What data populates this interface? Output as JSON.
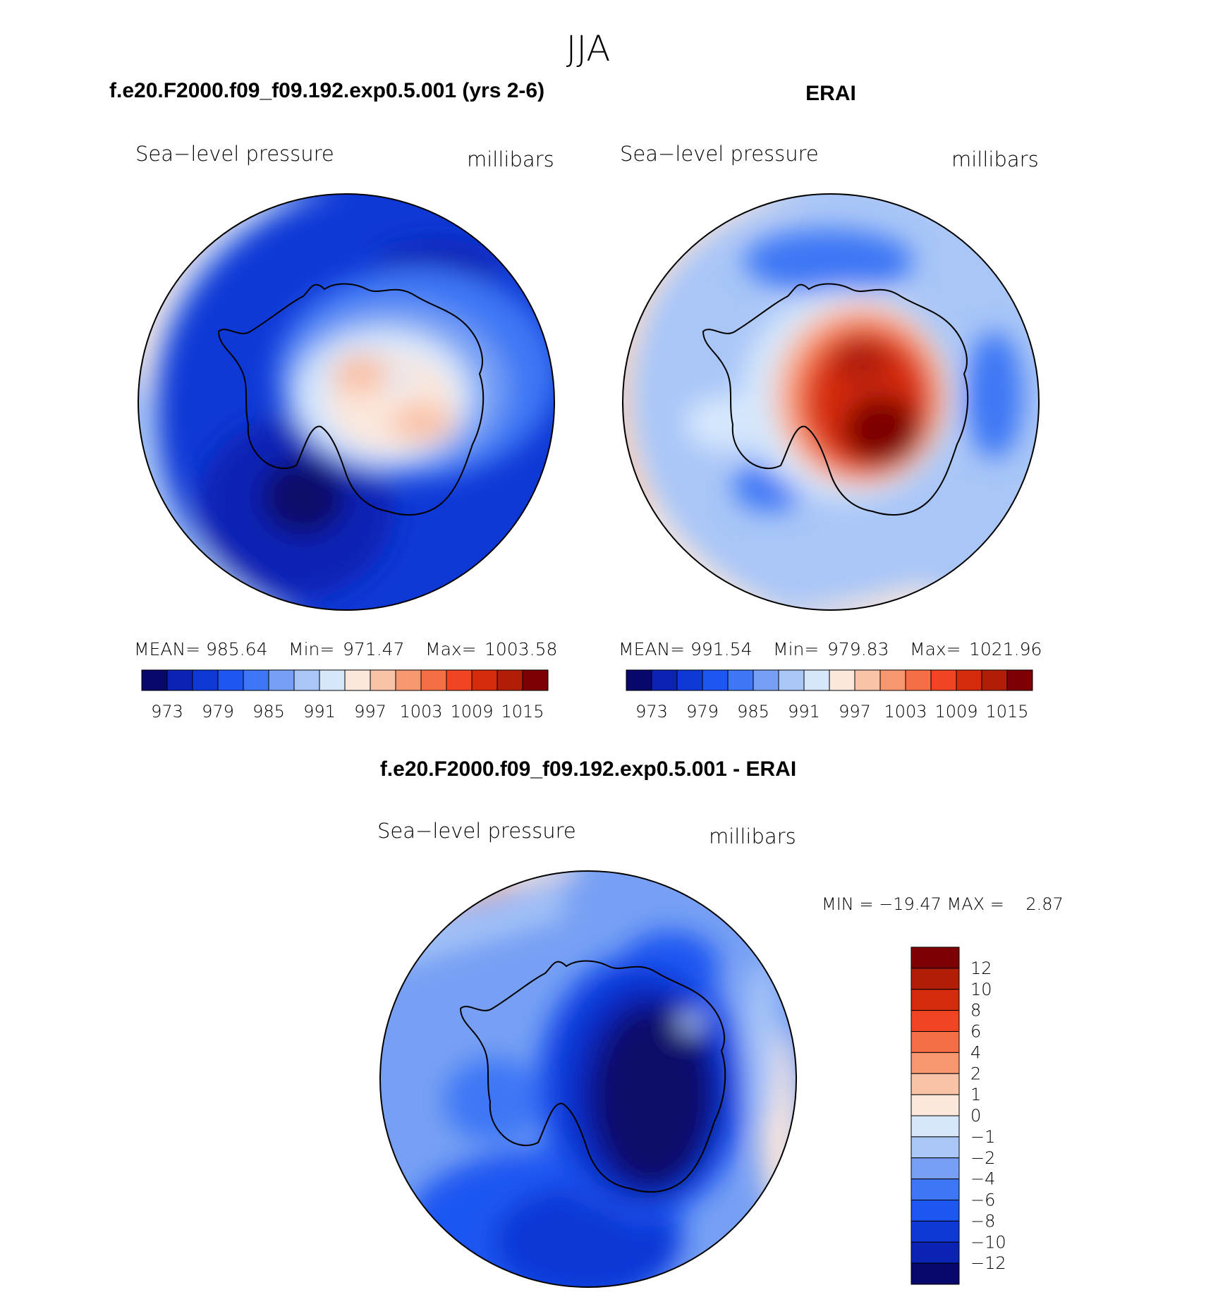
{
  "figure_title": "JJA",
  "chart_data": [
    {
      "type": "heatmap",
      "title": "f.e20.F2000.f09_f09.192.exp0.5.001 (yrs 2-6)",
      "variable": "Sea−level pressure",
      "units": "millibars",
      "projection": "south polar stereographic",
      "stats": {
        "mean_label": "MEAN=",
        "mean": "985.64",
        "min_label": "Min=",
        "min": "971.47",
        "max_label": "Max=",
        "max": "1003.58"
      },
      "colorbar": {
        "colors": [
          "#08086b",
          "#0a23b5",
          "#0f39d6",
          "#1e56f2",
          "#3e77f5",
          "#77a0f4",
          "#a9c6f7",
          "#d6e7fc",
          "#fbe7dc",
          "#f9c3a8",
          "#f7976f",
          "#f46f45",
          "#f04423",
          "#d42b0c",
          "#b11e08",
          "#7d0004"
        ],
        "tick_labels": [
          "973",
          "979",
          "985",
          "991",
          "997",
          "1003",
          "1009",
          "1015"
        ]
      }
    },
    {
      "type": "heatmap",
      "title": "ERAI",
      "variable": "Sea−level pressure",
      "units": "millibars",
      "projection": "south polar stereographic",
      "stats": {
        "mean_label": "MEAN=",
        "mean": "991.54",
        "min_label": "Min=",
        "min": "979.83",
        "max_label": "Max=",
        "max": "1021.96"
      },
      "colorbar": {
        "colors": [
          "#08086b",
          "#0a23b5",
          "#0f39d6",
          "#1e56f2",
          "#3e77f5",
          "#77a0f4",
          "#a9c6f7",
          "#d6e7fc",
          "#fbe7dc",
          "#f9c3a8",
          "#f7976f",
          "#f46f45",
          "#f04423",
          "#d42b0c",
          "#b11e08",
          "#7d0004"
        ],
        "tick_labels": [
          "973",
          "979",
          "985",
          "991",
          "997",
          "1003",
          "1009",
          "1015"
        ]
      }
    },
    {
      "type": "heatmap",
      "title": "f.e20.F2000.f09_f09.192.exp0.5.001 - ERAI",
      "variable": "Sea−level pressure",
      "units": "millibars",
      "projection": "south polar stereographic",
      "stats_line": "MIN = −19.47 MAX =    2.87",
      "colorbar": {
        "colors": [
          "#7d0004",
          "#b11e08",
          "#d42b0c",
          "#f04423",
          "#f46f45",
          "#f7976f",
          "#f9c3a8",
          "#fbe7dc",
          "#d6e7fc",
          "#a9c6f7",
          "#77a0f4",
          "#3e77f5",
          "#1e56f2",
          "#0f39d6",
          "#0a23b5",
          "#08086b"
        ],
        "tick_labels": [
          "12",
          "10",
          "8",
          "6",
          "4",
          "2",
          "1",
          "0",
          "−1",
          "−2",
          "−4",
          "−6",
          "−8",
          "−10",
          "−12"
        ]
      }
    }
  ]
}
